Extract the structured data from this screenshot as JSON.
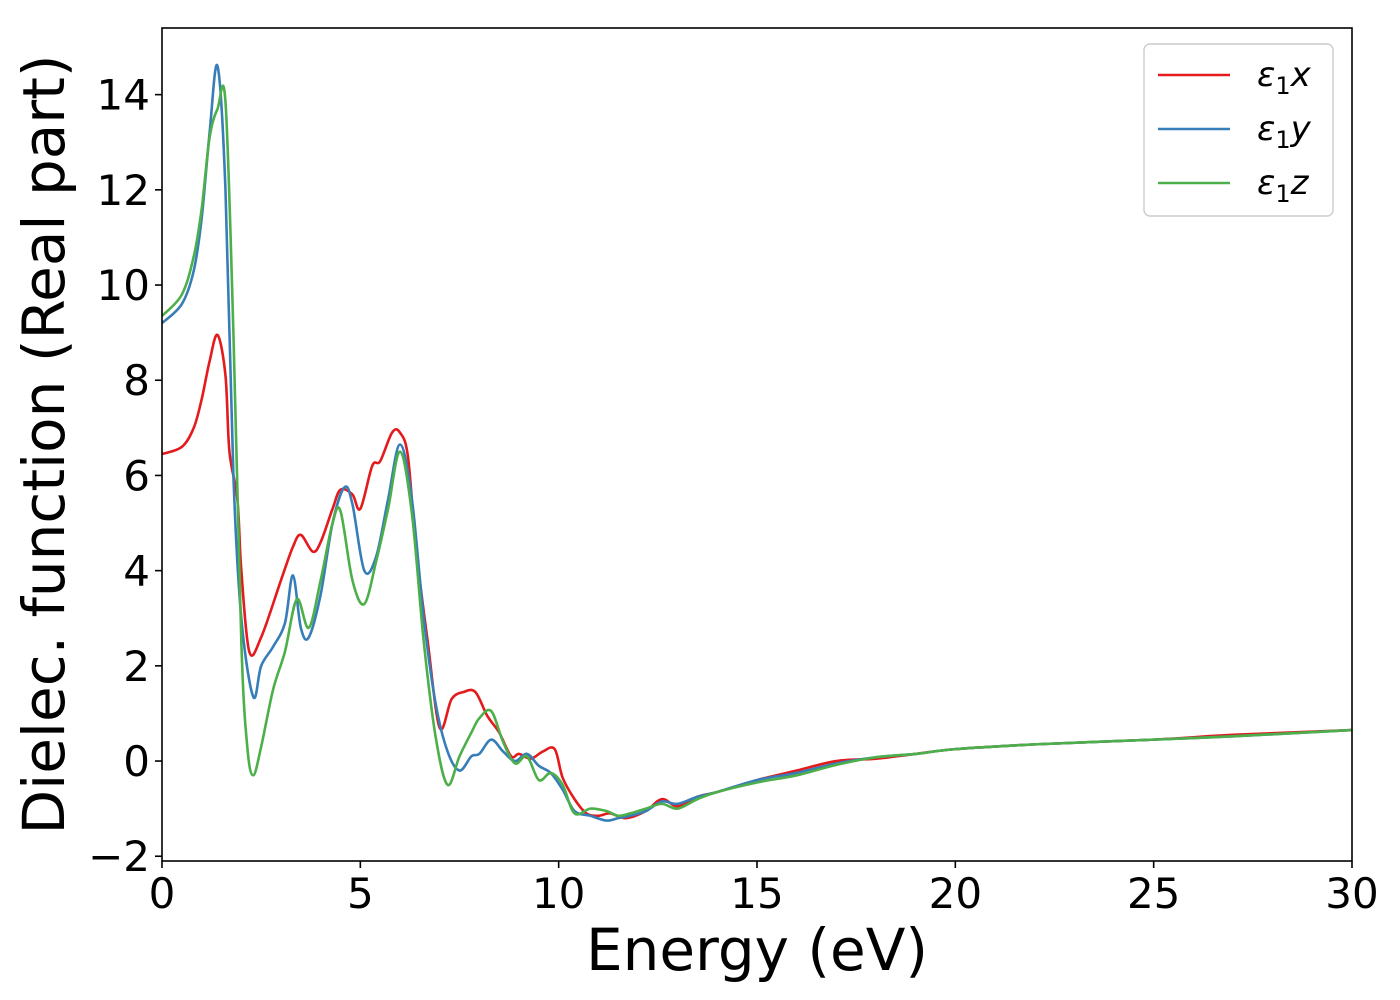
{
  "chart_data": {
    "type": "line",
    "title": "",
    "xlabel": "Energy (eV)",
    "ylabel": "Dielec. function (Real part)",
    "xlim": [
      0,
      30
    ],
    "ylim": [
      -2.1,
      15.4
    ],
    "xticks": [
      0,
      5,
      10,
      15,
      20,
      25,
      30
    ],
    "yticks": [
      -2,
      0,
      2,
      4,
      6,
      8,
      10,
      12,
      14
    ],
    "xtick_labels": [
      "0",
      "5",
      "10",
      "15",
      "20",
      "25",
      "30"
    ],
    "ytick_labels": [
      "−2",
      "0",
      "2",
      "4",
      "6",
      "8",
      "10",
      "12",
      "14"
    ],
    "grid": false,
    "legend_position": "top-right",
    "series": [
      {
        "name": "ε1x",
        "legend_base": "ε",
        "legend_sub": "1",
        "legend_suffix": "x",
        "color": "#e41a1c",
        "x": [
          0,
          0.5,
          0.8,
          1.0,
          1.2,
          1.4,
          1.6,
          1.7,
          1.9,
          2.0,
          2.2,
          2.5,
          3.0,
          3.3,
          3.5,
          3.8,
          4.0,
          4.3,
          4.5,
          4.8,
          5.0,
          5.3,
          5.5,
          5.8,
          6.0,
          6.2,
          6.4,
          6.7,
          7.0,
          7.3,
          7.6,
          7.9,
          8.2,
          8.5,
          8.8,
          9.0,
          9.3,
          9.6,
          9.9,
          10.1,
          10.4,
          10.7,
          11.0,
          11.3,
          11.7,
          12.2,
          12.6,
          13.0,
          13.5,
          14.0,
          15.0,
          16.0,
          17.0,
          18.0,
          19.0,
          20.0,
          22.0,
          25.0,
          27.0,
          30.0
        ],
        "values": [
          6.45,
          6.6,
          7.0,
          7.6,
          8.4,
          8.95,
          8.1,
          6.5,
          5.5,
          4.0,
          2.3,
          2.6,
          3.8,
          4.5,
          4.75,
          4.4,
          4.6,
          5.3,
          5.7,
          5.6,
          5.3,
          6.2,
          6.3,
          6.9,
          6.9,
          6.4,
          4.5,
          2.5,
          0.7,
          1.3,
          1.45,
          1.45,
          0.95,
          0.6,
          0.1,
          0.15,
          0.05,
          0.2,
          0.25,
          -0.35,
          -0.8,
          -1.1,
          -1.15,
          -1.1,
          -1.2,
          -1.05,
          -0.8,
          -0.95,
          -0.75,
          -0.65,
          -0.4,
          -0.2,
          0.0,
          0.05,
          0.15,
          0.25,
          0.35,
          0.45,
          0.55,
          0.65
        ]
      },
      {
        "name": "ε1y",
        "legend_base": "ε",
        "legend_sub": "1",
        "legend_suffix": "y",
        "color": "#377eb8",
        "x": [
          0,
          0.5,
          0.8,
          1.0,
          1.2,
          1.4,
          1.6,
          1.8,
          2.0,
          2.3,
          2.5,
          2.8,
          3.1,
          3.3,
          3.5,
          3.7,
          4.0,
          4.3,
          4.6,
          4.8,
          5.1,
          5.4,
          5.7,
          6.0,
          6.3,
          6.6,
          6.9,
          7.2,
          7.5,
          7.8,
          8.0,
          8.3,
          8.6,
          8.9,
          9.2,
          9.5,
          9.8,
          10.1,
          10.4,
          10.8,
          11.2,
          11.5,
          11.8,
          12.2,
          12.6,
          13.0,
          13.5,
          14.0,
          15.0,
          16.0,
          17.0,
          18.0,
          19.0,
          20.0,
          22.0,
          25.0,
          27.0,
          30.0
        ],
        "values": [
          9.2,
          9.6,
          10.3,
          11.4,
          13.2,
          14.6,
          12.0,
          6.0,
          3.0,
          1.35,
          2.0,
          2.4,
          2.9,
          3.9,
          2.8,
          2.6,
          3.5,
          5.0,
          5.75,
          5.4,
          4.0,
          4.3,
          5.5,
          6.65,
          5.5,
          3.0,
          1.2,
          0.2,
          -0.2,
          0.1,
          0.15,
          0.45,
          0.2,
          0.0,
          0.15,
          -0.1,
          -0.25,
          -0.6,
          -1.05,
          -1.15,
          -1.25,
          -1.2,
          -1.15,
          -1.05,
          -0.85,
          -0.9,
          -0.75,
          -0.65,
          -0.4,
          -0.25,
          -0.05,
          0.08,
          0.15,
          0.25,
          0.35,
          0.45,
          0.52,
          0.65
        ]
      },
      {
        "name": "ε1z",
        "legend_base": "ε",
        "legend_sub": "1",
        "legend_suffix": "z",
        "color": "#4daf4a",
        "x": [
          0,
          0.5,
          0.8,
          1.0,
          1.2,
          1.4,
          1.6,
          1.8,
          2.0,
          2.15,
          2.3,
          2.5,
          2.8,
          3.1,
          3.4,
          3.7,
          4.0,
          4.3,
          4.5,
          4.8,
          5.1,
          5.4,
          5.7,
          6.0,
          6.3,
          6.6,
          6.9,
          7.2,
          7.5,
          7.8,
          8.0,
          8.3,
          8.6,
          8.9,
          9.2,
          9.5,
          9.8,
          10.1,
          10.4,
          10.8,
          11.2,
          11.5,
          11.8,
          12.2,
          12.6,
          13.0,
          13.5,
          14.0,
          15.0,
          16.0,
          17.0,
          18.0,
          19.0,
          20.0,
          22.0,
          25.0,
          27.0,
          30.0
        ],
        "values": [
          9.35,
          9.8,
          10.6,
          11.6,
          13.1,
          13.7,
          13.85,
          9.0,
          2.5,
          0.3,
          -0.3,
          0.3,
          1.5,
          2.3,
          3.4,
          2.8,
          3.8,
          5.0,
          5.25,
          3.8,
          3.3,
          4.2,
          5.3,
          6.5,
          5.2,
          2.5,
          0.5,
          -0.5,
          0.1,
          0.6,
          0.9,
          1.05,
          0.4,
          -0.05,
          0.1,
          -0.4,
          -0.25,
          -0.5,
          -1.1,
          -1.0,
          -1.05,
          -1.15,
          -1.1,
          -1.0,
          -0.9,
          -1.0,
          -0.8,
          -0.65,
          -0.45,
          -0.3,
          -0.08,
          0.08,
          0.15,
          0.25,
          0.35,
          0.45,
          0.52,
          0.65
        ]
      }
    ]
  }
}
